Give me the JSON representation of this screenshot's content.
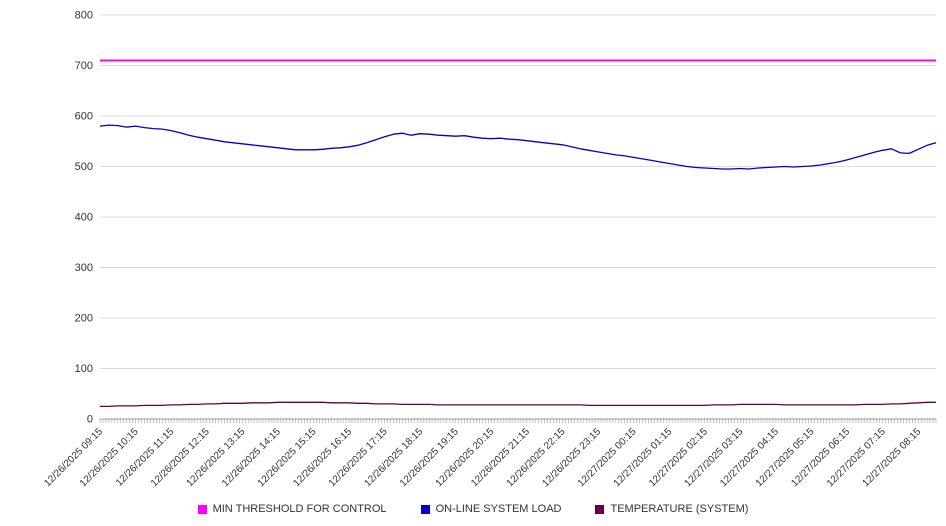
{
  "chart_data": {
    "type": "line",
    "title": "",
    "ylim": [
      0,
      800
    ],
    "y_ticks": [
      0,
      100,
      200,
      300,
      400,
      500,
      600,
      700,
      800
    ],
    "grid": "horizontal",
    "grid_color": "#dcdcdc",
    "axis_color": "#999999",
    "text_color": "#333333",
    "legend_position": "bottom",
    "x_label_every": 4,
    "minor_x_tick_count": 283,
    "x_tick_labels": [
      "12/26/2025 09:15",
      "12/26/2025 10:15",
      "12/26/2025 11:15",
      "12/26/2025 12:15",
      "12/26/2025 13:15",
      "12/26/2025 14:15",
      "12/26/2025 15:15",
      "12/26/2025 16:15",
      "12/26/2025 17:15",
      "12/26/2025 18:15",
      "12/26/2025 19:15",
      "12/26/2025 20:15",
      "12/26/2025 21:15",
      "12/26/2025 22:15",
      "12/26/2025 23:15",
      "12/27/2025 00:15",
      "12/27/2025 01:15",
      "12/27/2025 02:15",
      "12/27/2025 03:15",
      "12/27/2025 04:15",
      "12/27/2025 05:15",
      "12/27/2025 06:15",
      "12/27/2025 07:15",
      "12/27/2025 08:15"
    ],
    "series": [
      {
        "name": "MIN THRESHOLD FOR CONTROL",
        "color": "#ff00ff",
        "width": 2,
        "constant": 710
      },
      {
        "name": "ON-LINE SYSTEM LOAD",
        "color": "#0000cc",
        "width": 1.3,
        "values": [
          580,
          582,
          581,
          578,
          580,
          577,
          575,
          574,
          571,
          567,
          562,
          558,
          555,
          552,
          549,
          547,
          545,
          543,
          541,
          539,
          537,
          535,
          533,
          533,
          533,
          534,
          536,
          537,
          539,
          542,
          547,
          553,
          559,
          564,
          566,
          562,
          565,
          564,
          562,
          561,
          560,
          561,
          558,
          556,
          555,
          556,
          554,
          553,
          551,
          549,
          547,
          545,
          543,
          539,
          535,
          532,
          529,
          526,
          523,
          521,
          518,
          515,
          512,
          509,
          506,
          503,
          500,
          498,
          497,
          496,
          495,
          495,
          496,
          495,
          497,
          498,
          499,
          500,
          499,
          500,
          501,
          503,
          506,
          509,
          513,
          518,
          523,
          528,
          532,
          535,
          527,
          526,
          534,
          542,
          547
        ]
      },
      {
        "name": "TEMPERATURE (SYSTEM)",
        "color": "#650046",
        "width": 1.3,
        "values": [
          25,
          25,
          26,
          26,
          26,
          27,
          27,
          27,
          28,
          28,
          29,
          29,
          30,
          30,
          31,
          31,
          31,
          32,
          32,
          32,
          33,
          33,
          33,
          33,
          33,
          33,
          32,
          32,
          32,
          31,
          31,
          30,
          30,
          30,
          29,
          29,
          29,
          29,
          28,
          28,
          28,
          28,
          28,
          28,
          28,
          28,
          28,
          28,
          28,
          28,
          28,
          28,
          28,
          28,
          28,
          27,
          27,
          27,
          27,
          27,
          27,
          27,
          27,
          27,
          27,
          27,
          27,
          27,
          27,
          28,
          28,
          28,
          29,
          29,
          29,
          29,
          29,
          28,
          28,
          28,
          28,
          28,
          28,
          28,
          28,
          28,
          29,
          29,
          29,
          30,
          30,
          31,
          32,
          33,
          33
        ]
      }
    ]
  }
}
